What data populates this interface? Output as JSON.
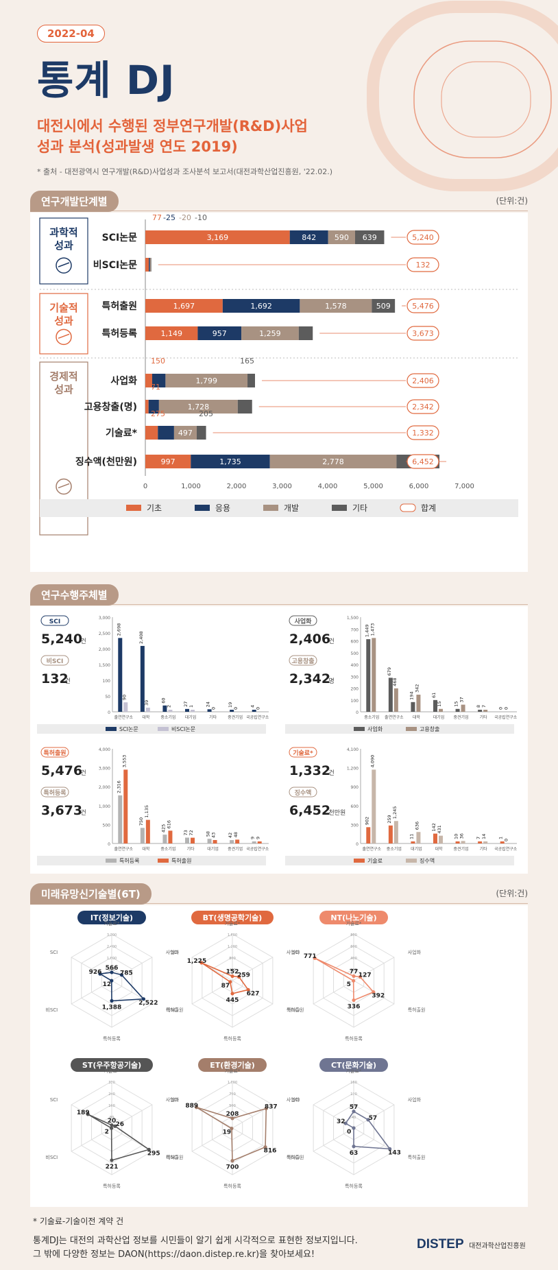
{
  "header": {
    "badge": "2022-04",
    "title": "통계 DJ",
    "subtitle_line1": "대전시에서 수행된 정부연구개발(R&D)사업",
    "subtitle_line2": "성과 분석(성과발생 연도 2019)",
    "source": "* 출처 - 대전광역시 연구개발(R&D)사업성과 조사분석 보고서(대전과학산업진흥원, '22.02.)"
  },
  "section1": {
    "label": "연구개발단계별",
    "unit": "(단위:건)"
  },
  "section2": {
    "label": "연구수행주체별"
  },
  "section3": {
    "label": "미래유망신기술별(6T)",
    "unit": "(단위:건)"
  },
  "colors": {
    "basic": "#e0693f",
    "applied": "#1d3a66",
    "dev": "#a89282",
    "other": "#5c5c5c",
    "total": "#e0693f"
  },
  "chart_data": [
    {
      "type": "bar",
      "orientation": "horizontal",
      "stacked": true,
      "groups": [
        {
          "name": "과학적 성과",
          "rows": [
            0,
            1
          ]
        },
        {
          "name": "기술적 성과",
          "rows": [
            2,
            3
          ]
        },
        {
          "name": "경제적 성과",
          "rows": [
            4,
            5,
            6,
            7
          ]
        }
      ],
      "categories": [
        "SCI논문",
        "비SCI논문",
        "특허출원",
        "특허등록",
        "사업화",
        "고용창출(명)",
        "기술료*",
        "징수액(천만원)"
      ],
      "series": [
        {
          "name": "기초",
          "values": [
            3169,
            77,
            1697,
            1149,
            150,
            71,
            275,
            997
          ]
        },
        {
          "name": "응용",
          "values": [
            842,
            25,
            1692,
            957,
            292,
            228,
            355,
            1735
          ]
        },
        {
          "name": "개발",
          "values": [
            590,
            20,
            1578,
            1259,
            1799,
            1728,
            497,
            2778
          ]
        },
        {
          "name": "기타",
          "values": [
            639,
            10,
            509,
            308,
            165,
            315,
            205,
            942
          ]
        }
      ],
      "totals": [
        5240,
        132,
        5476,
        3673,
        2406,
        2342,
        1332,
        6452
      ],
      "total_label": "합계",
      "xticks": [
        "0",
        "1,000",
        "2,000",
        "3,000",
        "4,000",
        "5,000",
        "6,000",
        "7,000"
      ],
      "xlim": [
        0,
        7000
      ]
    },
    {
      "type": "bar",
      "panel": "SCI",
      "cards": [
        {
          "label": "SCI",
          "value": "5,240",
          "unit": "건"
        },
        {
          "label": "비SCI",
          "value": "132",
          "unit": "건"
        }
      ],
      "categories": [
        "출연연구소",
        "대학",
        "중소기업",
        "대기업",
        "기타",
        "중견기업",
        "국공립연구소"
      ],
      "series": [
        {
          "name": "SCI논문",
          "values": [
            2698,
            2408,
            60,
            27,
            24,
            19,
            4
          ]
        },
        {
          "name": "비SCI논문",
          "values": [
            90,
            39,
            2,
            1,
            0,
            0,
            0
          ]
        }
      ],
      "yticks": [
        "0",
        "50",
        "100",
        "1,500",
        "2,000",
        "2,500",
        "3,000"
      ]
    },
    {
      "type": "bar",
      "panel": "사업화",
      "cards": [
        {
          "label": "사업화",
          "value": "2,406",
          "unit": "건"
        },
        {
          "label": "고용창출",
          "value": "2,342",
          "unit": "명"
        }
      ],
      "categories": [
        "중소기업",
        "출연연구소",
        "대학",
        "대기업",
        "중견기업",
        "기타",
        "국공립연구소"
      ],
      "series": [
        {
          "name": "사업화",
          "values": [
            1449,
            679,
            194,
            61,
            15,
            8,
            0
          ]
        },
        {
          "name": "고용창출",
          "values": [
            1473,
            468,
            342,
            15,
            37,
            7,
            0
          ]
        }
      ],
      "yticks": [
        "0",
        "100",
        "200",
        "300",
        "400",
        "500",
        "600",
        "700",
        "1,500"
      ]
    },
    {
      "type": "bar",
      "panel": "특허",
      "cards": [
        {
          "label": "특허출원",
          "value": "5,476",
          "unit": "건"
        },
        {
          "label": "특허등록",
          "value": "3,673",
          "unit": "건"
        }
      ],
      "categories": [
        "출연연구소",
        "대학",
        "중소기업",
        "기타",
        "대기업",
        "중견기업",
        "국공립연구소"
      ],
      "series": [
        {
          "name": "특허등록",
          "values": [
            2316,
            750,
            425,
            73,
            58,
            42,
            9
          ]
        },
        {
          "name": "특허출원",
          "values": [
            3553,
            1135,
            616,
            72,
            43,
            48,
            9
          ]
        }
      ],
      "yticks": [
        "0",
        "500",
        "1,000",
        "2,000",
        "3,000",
        "4,000"
      ]
    },
    {
      "type": "bar",
      "panel": "기술료",
      "cards": [
        {
          "label": "기술료*",
          "value": "1,332",
          "unit": "건"
        },
        {
          "label": "징수액",
          "value": "6,452",
          "unit": "천만원"
        }
      ],
      "categories": [
        "출연연구소",
        "중소기업",
        "대기업",
        "대학",
        "중견기업",
        "기타",
        "국공립연구소"
      ],
      "series": [
        {
          "name": "기술료",
          "values": [
            902,
            259,
            11,
            142,
            10,
            7,
            1
          ]
        },
        {
          "name": "징수액",
          "values": [
            4090,
            1245,
            636,
            431,
            36,
            14,
            0
          ]
        }
      ],
      "yticks": [
        "0",
        "300",
        "600",
        "900",
        "1,200",
        "4,100"
      ]
    },
    {
      "type": "radar",
      "axes": [
        "기술료*",
        "사업화",
        "특허출원",
        "특허등록",
        "비SCI",
        "SCI"
      ],
      "charts": [
        {
          "name": "IT(정보기술)",
          "color": "#1d3a66",
          "values": [
            566,
            785,
            2522,
            1388,
            12,
            926
          ],
          "rticks": [
            "800",
            "1,600",
            "2,400",
            "3,200"
          ],
          "rmax": 3200
        },
        {
          "name": "BT(생명공학기술)",
          "color": "#e0693f",
          "values": [
            152,
            259,
            627,
            445,
            87,
            1225
          ],
          "rticks": [
            "400",
            "800",
            "1,200",
            "1,600"
          ],
          "rmax": 1600
        },
        {
          "name": "NT(나노기술)",
          "color": "#ee8a6c",
          "values": [
            77,
            127,
            392,
            336,
            5,
            771
          ],
          "rticks": [
            "200",
            "400",
            "600",
            "800"
          ],
          "rmax": 800
        },
        {
          "name": "ST(우주항공기술)",
          "color": "#555555",
          "values": [
            20,
            26,
            295,
            221,
            2,
            189
          ],
          "rticks": [
            "80",
            "160",
            "240",
            "320"
          ],
          "rmax": 320
        },
        {
          "name": "ET(환경기술)",
          "color": "#a47e6b",
          "values": [
            208,
            837,
            816,
            700,
            19,
            889
          ],
          "rticks": [
            "250",
            "500",
            "750",
            "1,000"
          ],
          "rmax": 1000
        },
        {
          "name": "CT(문화기술)",
          "color": "#6f7592",
          "values": [
            57,
            57,
            143,
            63,
            0,
            32
          ],
          "rticks": [
            "40",
            "80",
            "120",
            "160"
          ],
          "rmax": 160
        }
      ]
    }
  ],
  "footer": {
    "note": "* 기술료-기술이전 계약 건",
    "line1": "통계DJ는 대전의 과학산업 정보를 시민들이 알기 쉽게 시각적으로 표현한 정보지입니다.",
    "line2": "그 밖에 다양한 정보는 DAON(https://daon.distep.re.kr)을 찾아보세요!",
    "logo": "DISTEP",
    "logo_sub": "대전과학산업진흥원"
  }
}
